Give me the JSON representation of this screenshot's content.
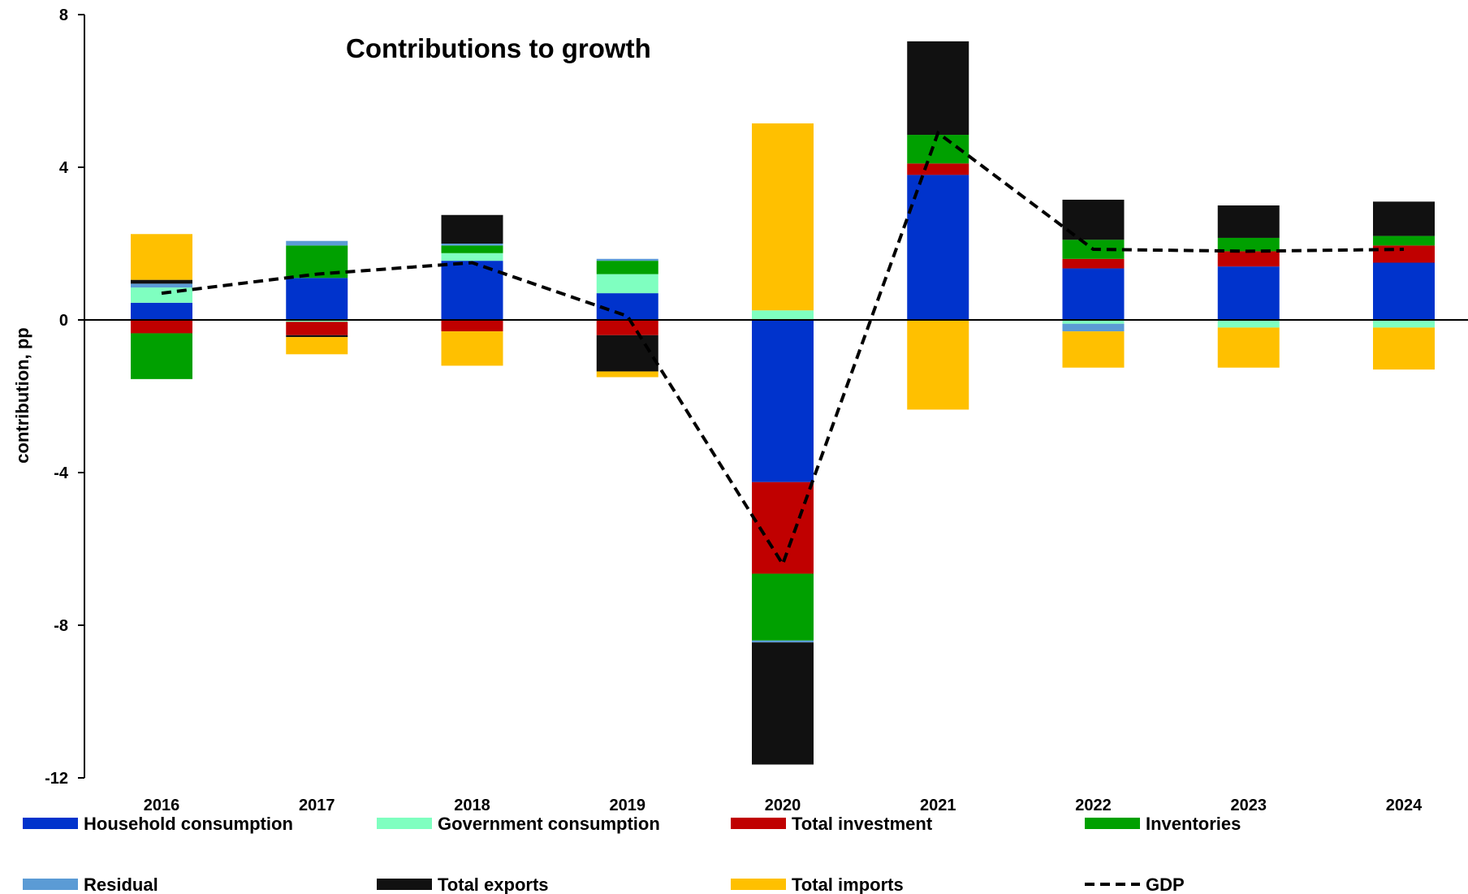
{
  "chart_data": {
    "type": "bar",
    "stacked": true,
    "title": "Contributions to growth",
    "xlabel": "",
    "ylabel": "contribution, pp",
    "ylim": [
      -12,
      8
    ],
    "yticks": [
      -12,
      -8,
      -4,
      0,
      4,
      8
    ],
    "grid": false,
    "legend_position": "bottom",
    "categories": [
      "2016",
      "2017",
      "2018",
      "2019",
      "2020",
      "2021",
      "2022",
      "2023",
      "2024"
    ],
    "series": [
      {
        "name": "Household consumption",
        "color": "#0033CC",
        "kind": "bar",
        "values": [
          0.45,
          1.1,
          1.55,
          0.7,
          -4.25,
          3.8,
          1.35,
          1.4,
          1.5
        ]
      },
      {
        "name": "Government consumption",
        "color": "#7FFFC0",
        "kind": "bar",
        "values": [
          0.4,
          -0.05,
          0.2,
          0.5,
          0.25,
          0.0,
          -0.1,
          -0.2,
          -0.2
        ]
      },
      {
        "name": "Total investment",
        "color": "#C00000",
        "kind": "bar",
        "values": [
          -0.35,
          -0.35,
          -0.3,
          -0.4,
          -2.4,
          0.3,
          0.25,
          0.4,
          0.45
        ]
      },
      {
        "name": "Inventories",
        "color": "#00A000",
        "kind": "bar",
        "values": [
          -1.2,
          0.85,
          0.2,
          0.35,
          -1.75,
          0.75,
          0.5,
          0.35,
          0.25
        ]
      },
      {
        "name": "Residual",
        "color": "#5B9BD5",
        "kind": "bar",
        "values": [
          0.1,
          0.12,
          0.05,
          0.05,
          -0.05,
          0.0,
          -0.2,
          0.0,
          0.0
        ]
      },
      {
        "name": "Total exports",
        "color": "#111111",
        "kind": "bar",
        "values": [
          0.1,
          -0.05,
          0.75,
          -0.95,
          -3.2,
          2.45,
          1.05,
          0.85,
          0.9
        ]
      },
      {
        "name": "Total imports",
        "color": "#FFC000",
        "kind": "bar",
        "values": [
          1.2,
          -0.45,
          -0.9,
          -0.15,
          4.9,
          -2.35,
          -0.95,
          -1.05,
          -1.1
        ]
      },
      {
        "name": "GDP",
        "color": "#000000",
        "kind": "line",
        "dashed": true,
        "values": [
          0.7,
          1.2,
          1.5,
          0.1,
          -6.4,
          4.9,
          1.85,
          1.8,
          1.85
        ]
      }
    ]
  }
}
